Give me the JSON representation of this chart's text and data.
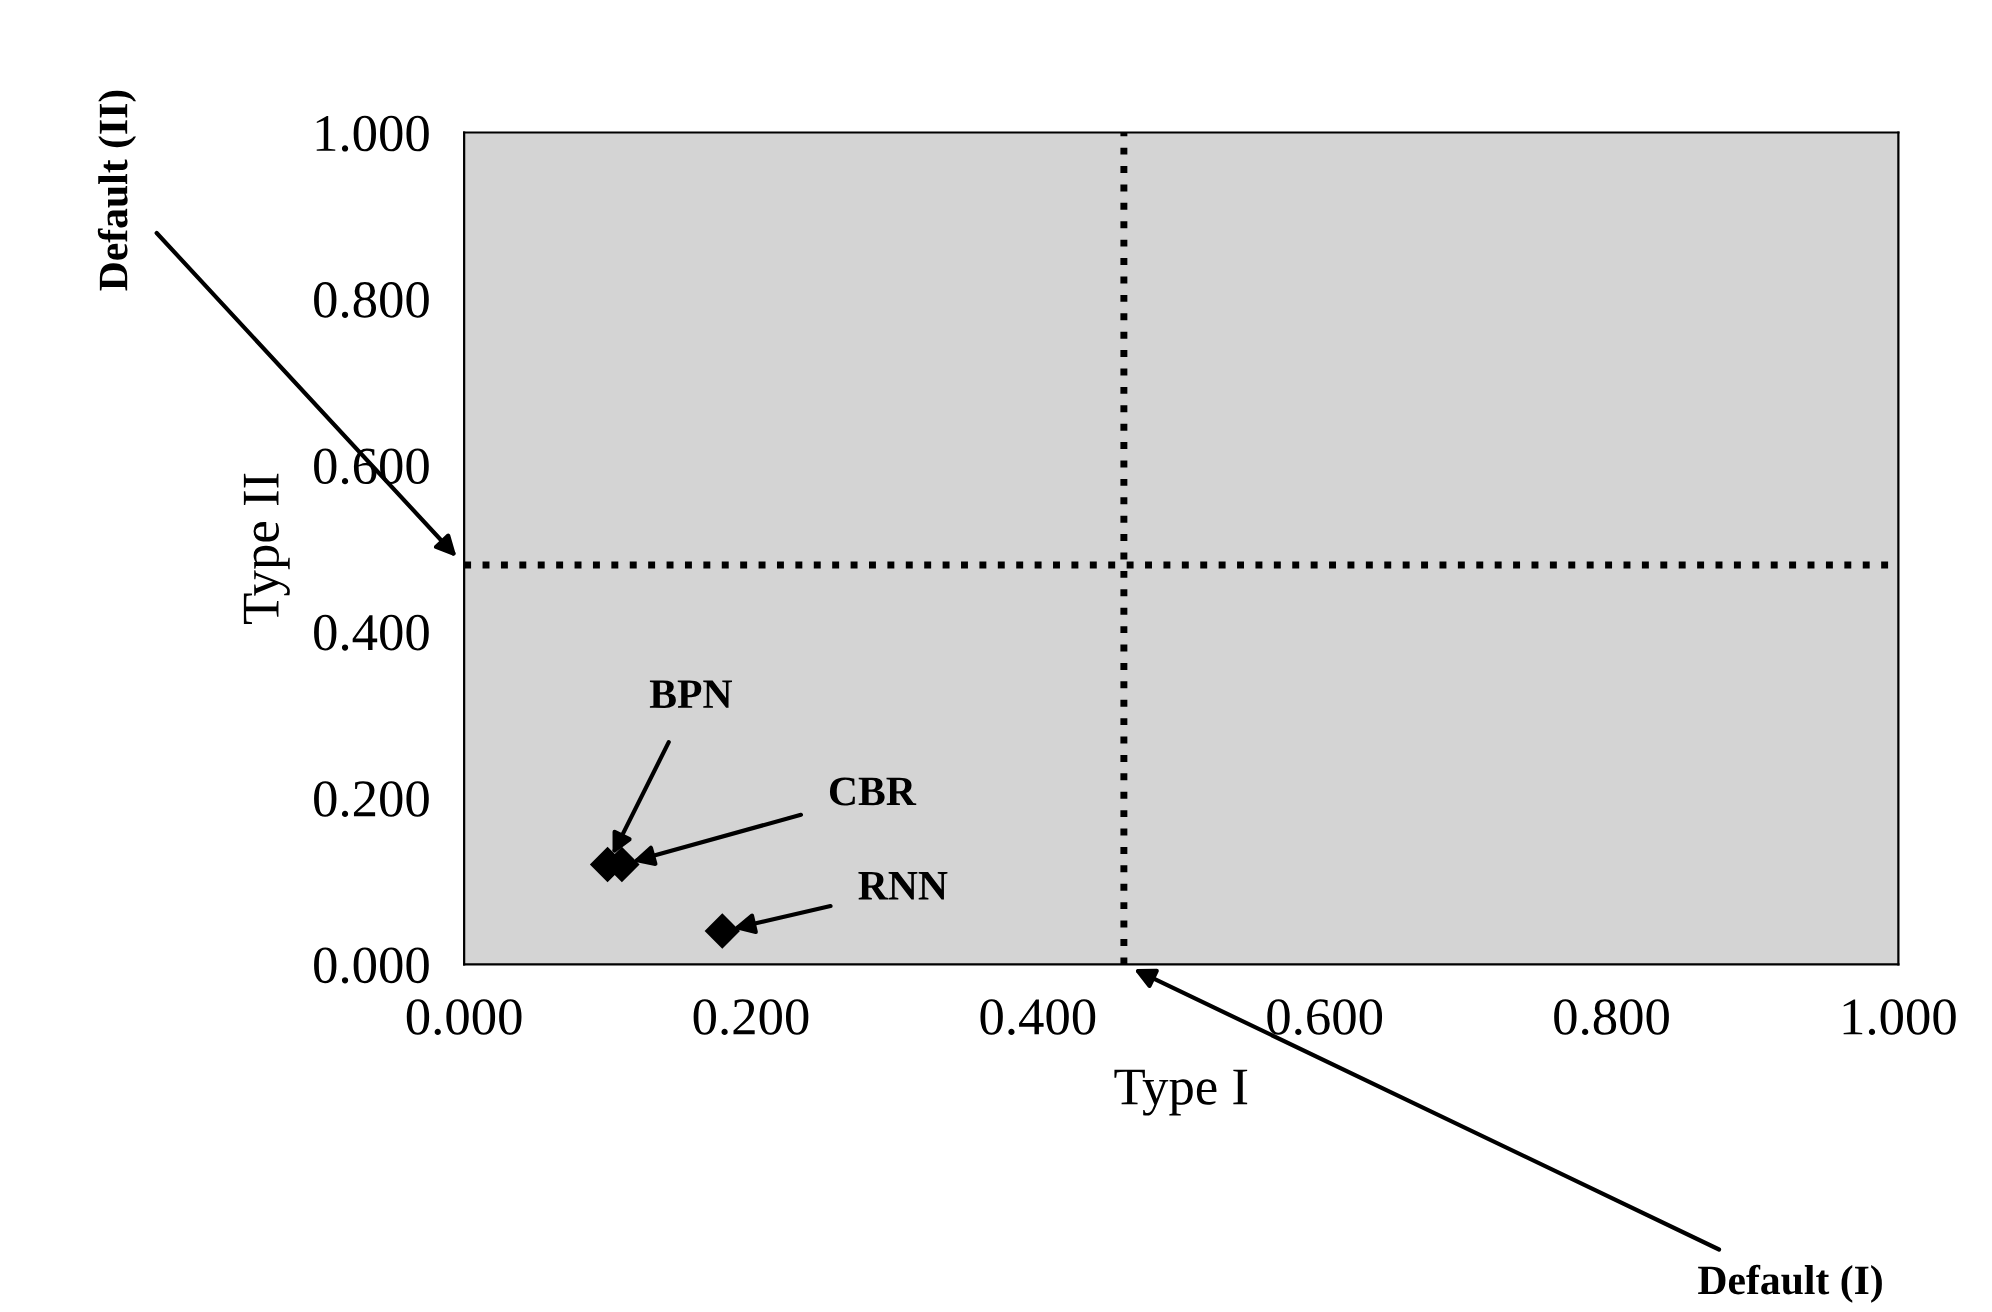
{
  "chart_data": {
    "type": "scatter",
    "xlabel": "Type I",
    "ylabel": "Type II",
    "x": [
      0.1,
      0.11,
      0.18
    ],
    "values": [
      0.12,
      0.12,
      0.04
    ],
    "color": "#000000",
    "marker": "diamond",
    "xlim": [
      0,
      1
    ],
    "ylim": [
      0,
      1
    ],
    "xticks": [
      {
        "value": 0,
        "label": "0.000"
      },
      {
        "value": 0.2,
        "label": "0.200"
      },
      {
        "value": 0.4,
        "label": "0.400"
      },
      {
        "value": 0.6,
        "label": "0.600"
      },
      {
        "value": 0.8,
        "label": "0.800"
      },
      {
        "value": 1,
        "label": "1.000"
      }
    ],
    "yticks": [
      {
        "value": 0,
        "label": "0.000"
      },
      {
        "value": 0.2,
        "label": "0.200"
      },
      {
        "value": 0.4,
        "label": "0.400"
      },
      {
        "value": 0.6,
        "label": "0.600"
      },
      {
        "value": 0.8,
        "label": "0.800"
      },
      {
        "value": 1,
        "label": "1.000"
      }
    ],
    "grid": false,
    "legend": false,
    "ref_lines": [
      {
        "axis": "x",
        "value": 0.46,
        "color": "#000000",
        "line_style": "dotted"
      },
      {
        "axis": "y",
        "value": 0.48,
        "color": "#000000",
        "line_style": "dotted"
      }
    ],
    "annotations": [
      {
        "text": "BPN",
        "x": 0.1,
        "y": 0.12
      },
      {
        "text": "CBR",
        "x": 0.11,
        "y": 0.12
      },
      {
        "text": "RNN",
        "x": 0.18,
        "y": 0.04
      },
      "Default (II)",
      "Default (I)"
    ]
  }
}
